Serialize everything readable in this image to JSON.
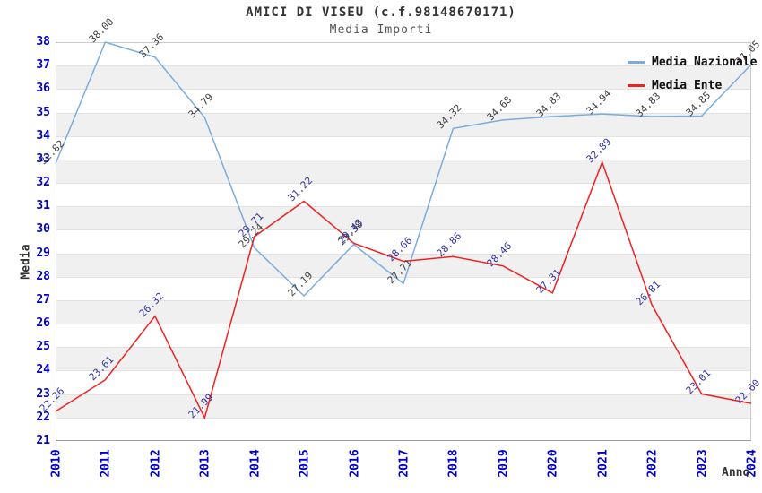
{
  "title": "AMICI DI VISEU (c.f.98148670171)",
  "subtitle": "Media Importi",
  "chart_data": {
    "type": "line",
    "title": "AMICI DI VISEU (c.f.98148670171)",
    "subtitle": "Media Importi",
    "xlabel": "Anno",
    "ylabel": "Media",
    "x": [
      "2010",
      "2011",
      "2012",
      "2013",
      "2014",
      "2015",
      "2016",
      "2017",
      "2018",
      "2019",
      "2020",
      "2021",
      "2022",
      "2023",
      "2024"
    ],
    "ylim": [
      21,
      38
    ],
    "y_tick_step": 1,
    "grid": "horizontal-bands",
    "band_fill": "#f0f0f0",
    "axis_tick_color": "#0000cc",
    "legend_position": "top-right",
    "series": [
      {
        "name": "Media Nazionale",
        "color": "#7aacdf",
        "label_color": "#404040",
        "values": [
          32.82,
          38.0,
          37.36,
          34.79,
          29.24,
          27.19,
          29.38,
          27.71,
          34.32,
          34.68,
          34.83,
          34.94,
          34.83,
          34.85,
          37.05
        ]
      },
      {
        "name": "Media Ente",
        "color": "#ee2222",
        "label_color": "#3333a0",
        "values": [
          22.26,
          23.61,
          26.32,
          21.99,
          29.71,
          31.22,
          29.43,
          28.66,
          28.86,
          28.46,
          27.31,
          32.89,
          26.81,
          23.01,
          22.6
        ]
      }
    ]
  }
}
